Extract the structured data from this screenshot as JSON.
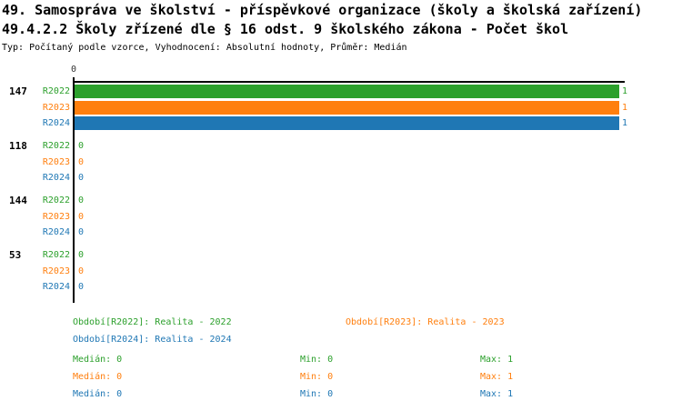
{
  "title": {
    "line1": "49. Samospráva ve školství - příspěvkové organizace (školy a školská zařízení)",
    "line2": "49.4.2.2 Školy zřízené dle § 16 odst. 9 školského zákona - Počet škol",
    "meta": "Typ: Počítaný podle vzorce, Vyhodnocení: Absolutní hodnoty, Průměr: Medián"
  },
  "colors": {
    "green": "#2ca02c",
    "orange": "#ff7f0e",
    "blue": "#1f77b4",
    "axis": "#000000",
    "tick": "#333333"
  },
  "chart_data": {
    "type": "bar",
    "orientation": "horizontal",
    "title": "49.4.2.2 Školy zřízené dle § 16 odst. 9 školského zákona - Počet škol",
    "axis_tick_label": "0",
    "xlim": [
      0,
      1
    ],
    "grid": false,
    "categories": [
      "147",
      "118",
      "144",
      "53"
    ],
    "series": [
      {
        "name": "R2022",
        "color_key": "green",
        "values": [
          1,
          0,
          0,
          0
        ]
      },
      {
        "name": "R2023",
        "color_key": "orange",
        "values": [
          1,
          0,
          0,
          0
        ]
      },
      {
        "name": "R2024",
        "color_key": "blue",
        "values": [
          1,
          0,
          0,
          0
        ]
      }
    ]
  },
  "footer": {
    "legend": [
      {
        "label": "Období[R2022]: Realita - 2022",
        "color_key": "green"
      },
      {
        "label": "Období[R2023]: Realita - 2023",
        "color_key": "orange"
      },
      {
        "label": "Období[R2024]: Realita - 2024",
        "color_key": "blue"
      }
    ],
    "stats": [
      {
        "series": "R2022",
        "color_key": "green",
        "median": "Medián: 0",
        "min": "Min: 0",
        "max": "Max: 1"
      },
      {
        "series": "R2023",
        "color_key": "orange",
        "median": "Medián: 0",
        "min": "Min: 0",
        "max": "Max: 1"
      },
      {
        "series": "R2024",
        "color_key": "blue",
        "median": "Medián: 0",
        "min": "Min: 0",
        "max": "Max: 1"
      }
    ]
  }
}
